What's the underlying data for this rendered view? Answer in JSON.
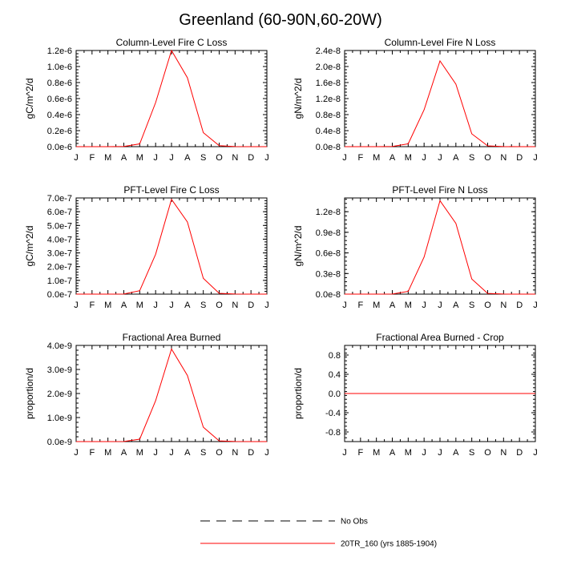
{
  "figure": {
    "title": "Greenland (60-90N,60-20W)",
    "months": [
      "J",
      "F",
      "M",
      "A",
      "M",
      "J",
      "J",
      "A",
      "S",
      "O",
      "N",
      "D",
      "J"
    ],
    "legend": [
      {
        "label": "No Obs",
        "style": "dashed",
        "color": "#000000"
      },
      {
        "label": "20TR_160 (yrs 1885-1904)",
        "style": "solid",
        "color": "#ff0000"
      }
    ]
  },
  "chart_data": [
    {
      "type": "line",
      "title": "Column-Level Fire C Loss",
      "ylabel": "gC/m^2/d",
      "ylim": [
        0,
        1.2e-06
      ],
      "yticks": [
        0,
        2e-07,
        4e-07,
        6e-07,
        8e-07,
        1e-06,
        1.2e-06
      ],
      "yticklabels": [
        "0.0e-6",
        "0.2e-6",
        "0.4e-6",
        "0.6e-6",
        "0.8e-6",
        "1.0e-6",
        "1.2e-6"
      ],
      "series": [
        {
          "name": "20TR_160 (yrs 1885-1904)",
          "color": "#ff0000",
          "values": [
            0,
            0,
            0,
            2e-09,
            3.5e-08,
            5.5e-07,
            1.2e-06,
            8.6e-07,
            1.75e-07,
            1.2e-08,
            1e-09,
            0,
            0
          ]
        }
      ]
    },
    {
      "type": "line",
      "title": "Column-Level Fire N Loss",
      "ylabel": "gN/m^2/d",
      "ylim": [
        0,
        2.4e-08
      ],
      "yticks": [
        0,
        4e-09,
        8e-09,
        1.2e-08,
        1.6e-08,
        2e-08,
        2.4e-08
      ],
      "yticklabels": [
        "0.0e-8",
        "0.4e-8",
        "0.8e-8",
        "1.2e-8",
        "1.6e-8",
        "2.0e-8",
        "2.4e-8"
      ],
      "series": [
        {
          "name": "20TR_160 (yrs 1885-1904)",
          "color": "#ff0000",
          "values": [
            0,
            0,
            0,
            4e-11,
            7e-10,
            9.2e-09,
            2.14e-08,
            1.56e-08,
            3.2e-09,
            2e-10,
            2e-11,
            0,
            0
          ]
        }
      ]
    },
    {
      "type": "line",
      "title": "PFT-Level Fire C Loss",
      "ylabel": "gC/m^2/d",
      "ylim": [
        0,
        7e-07
      ],
      "yticks": [
        0,
        1e-07,
        2e-07,
        3e-07,
        4e-07,
        5e-07,
        6e-07,
        7e-07
      ],
      "yticklabels": [
        "0.0e-7",
        "1.0e-7",
        "2.0e-7",
        "3.0e-7",
        "4.0e-7",
        "5.0e-7",
        "6.0e-7",
        "7.0e-7"
      ],
      "series": [
        {
          "name": "20TR_160 (yrs 1885-1904)",
          "color": "#ff0000",
          "values": [
            0,
            0,
            0,
            1e-09,
            2.5e-08,
            2.9e-07,
            6.9e-07,
            5.25e-07,
            1.15e-07,
            6e-09,
            1e-09,
            0,
            0
          ]
        }
      ]
    },
    {
      "type": "line",
      "title": "PFT-Level Fire N Loss",
      "ylabel": "gN/m^2/d",
      "ylim": [
        0,
        1.4e-08
      ],
      "yticks": [
        0,
        3e-09,
        6e-09,
        9e-09,
        1.2e-08
      ],
      "yticklabels": [
        "0.0e-8",
        "0.3e-8",
        "0.6e-8",
        "0.9e-8",
        "1.2e-8"
      ],
      "series": [
        {
          "name": "20TR_160 (yrs 1885-1904)",
          "color": "#ff0000",
          "values": [
            0,
            0,
            0,
            2e-11,
            4e-10,
            5.4e-09,
            1.36e-08,
            1.03e-08,
            2.2e-09,
            1e-10,
            1e-11,
            0,
            0
          ]
        }
      ]
    },
    {
      "type": "line",
      "title": "Fractional Area Burned",
      "ylabel": "proportion/d",
      "ylim": [
        0,
        4e-09
      ],
      "yticks": [
        0,
        1e-09,
        2e-09,
        3e-09,
        4e-09
      ],
      "yticklabels": [
        "0.0e-9",
        "1.0e-9",
        "2.0e-9",
        "3.0e-9",
        "4.0e-9"
      ],
      "series": [
        {
          "name": "20TR_160 (yrs 1885-1904)",
          "color": "#ff0000",
          "values": [
            0,
            0,
            0,
            5e-12,
            1e-10,
            1.7e-09,
            3.85e-09,
            2.75e-09,
            6e-10,
            3e-11,
            5e-12,
            0,
            0
          ]
        }
      ]
    },
    {
      "type": "line",
      "title": "Fractional Area Burned - Crop",
      "ylabel": "proportion/d",
      "ylim": [
        -1.0,
        1.0
      ],
      "yticks": [
        -0.8,
        -0.4,
        0,
        0.4,
        0.8
      ],
      "yticklabels": [
        "-0.8",
        "-0.4",
        "0.0",
        "0.4",
        "0.8"
      ],
      "series": [
        {
          "name": "20TR_160 (yrs 1885-1904)",
          "color": "#ff0000",
          "values": [
            0,
            0,
            0,
            0,
            0,
            0,
            0,
            0,
            0,
            0,
            0,
            0,
            0
          ]
        }
      ]
    }
  ]
}
